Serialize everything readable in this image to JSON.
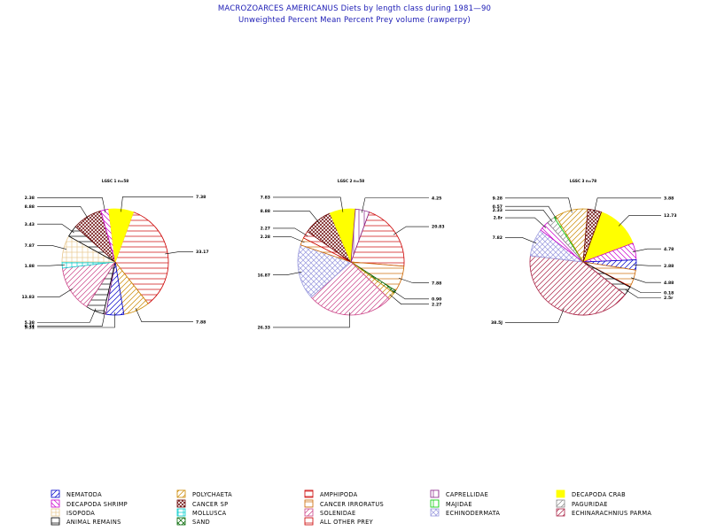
{
  "title_line1": "MACROZOARCES AMERICANUS Diets by length class during 1981—90",
  "title_line2": "Unweighted Percent Mean Percent Prey  volume (rawperpy)",
  "categories": {
    "NEMATODA": {
      "label": "NEMATODA",
      "color": "#0000cc",
      "pattern": "hatch45"
    },
    "DECAPODA SHRIMP": {
      "label": "DECAPODA  SHRIMP",
      "color": "#cc00cc",
      "pattern": "hatch135"
    },
    "ISOPODA": {
      "label": "ISOPODA",
      "color": "#e8c890",
      "pattern": "grid"
    },
    "ANIMAL REMAINS": {
      "label": "ANIMAL  REMAINS",
      "color": "#000000",
      "pattern": "horiz"
    },
    "POLYCHAETA": {
      "label": "POLYCHAETA",
      "color": "#cc8800",
      "pattern": "hatch45"
    },
    "CANCER SP": {
      "label": "CANCER  SP",
      "color": "#660000",
      "pattern": "crossdense"
    },
    "MOLLUSCA": {
      "label": "MOLLUSCA",
      "color": "#00cccc",
      "pattern": "grid"
    },
    "SAND": {
      "label": "SAND",
      "color": "#006600",
      "pattern": "cross"
    },
    "AMPHIPODA": {
      "label": "AMPHIPODA",
      "color": "#cc0000",
      "pattern": "horiz"
    },
    "CANCER IRRORATUS": {
      "label": "CANCER  IRRORATUS",
      "color": "#cc6600",
      "pattern": "horiz"
    },
    "SOLENIDAE": {
      "label": "SOLENIDAE",
      "color": "#cc4488",
      "pattern": "hatch45"
    },
    "ALL OTHER PREY": {
      "label": "ALL  OTHER  PREY",
      "color": "#cc0000",
      "pattern": "horiz"
    },
    "CAPRELLIDAE": {
      "label": "CAPRELLIDAE",
      "color": "#882288",
      "pattern": "vert"
    },
    "MAJIDAE": {
      "label": "MAJIDAE",
      "color": "#00cc00",
      "pattern": "vert"
    },
    "ECHINODERMATA": {
      "label": "ECHINODERMATA",
      "color": "#9999dd",
      "pattern": "cross"
    },
    "DECAPODA CRAB": {
      "label": "DECAPODA  CRAB",
      "color": "#ffff00",
      "pattern": "solid"
    },
    "PAGURIDAE": {
      "label": "PAGURIDAE",
      "color": "#888888",
      "pattern": "hatch45"
    },
    "ECHINARACHNIUS PARMA": {
      "label": "ECHINARACHNIUS  PARMA",
      "color": "#aa2244",
      "pattern": "hatch45"
    }
  },
  "legend_columns": [
    [
      "NEMATODA",
      "DECAPODA SHRIMP",
      "ISOPODA",
      "ANIMAL REMAINS"
    ],
    [
      "POLYCHAETA",
      "CANCER SP",
      "MOLLUSCA",
      "SAND"
    ],
    [
      "AMPHIPODA",
      "CANCER IRRORATUS",
      "SOLENIDAE",
      "ALL OTHER PREY"
    ],
    [
      "CAPRELLIDAE",
      "MAJIDAE",
      "ECHINODERMATA"
    ],
    [
      "DECAPODA CRAB",
      "PAGURIDAE",
      "ECHINARACHNIUS PARMA"
    ]
  ],
  "chart_data": [
    {
      "type": "pie",
      "title": "LGSC 1 n=58",
      "slices": [
        {
          "category": "AMPHIPODA",
          "value": 33.17,
          "label": "33.17"
        },
        {
          "category": "POLYCHAETA",
          "value": 7.88,
          "label": "7.88"
        },
        {
          "category": "NEMATODA",
          "value": 5.31,
          "label": "5.31"
        },
        {
          "category": "CAPRELLIDAE",
          "value": 0.74,
          "label": "0.74"
        },
        {
          "category": "ANIMAL REMAINS",
          "value": 5.38,
          "label": "5.38"
        },
        {
          "category": "SOLENIDAE",
          "value": 13.83,
          "label": "13.83"
        },
        {
          "category": "MOLLUSCA",
          "value": 1.88,
          "label": "1.88"
        },
        {
          "category": "ISOPODA",
          "value": 7.87,
          "label": "7.87"
        },
        {
          "category": "ANIMAL REMAINS",
          "value": 3.43,
          "label": "3.43"
        },
        {
          "category": "CANCER SP",
          "value": 8.88,
          "label": "8.88"
        },
        {
          "category": "DECAPODA SHRIMP",
          "value": 2.38,
          "label": "2.38"
        },
        {
          "category": "DECAPODA CRAB",
          "value": 7.38,
          "label": "7.38"
        }
      ]
    },
    {
      "type": "pie",
      "title": "LGSC 2 n=58",
      "slices": [
        {
          "category": "AMPHIPODA",
          "value": 20.83,
          "label": "20.83"
        },
        {
          "category": "CANCER IRRORATUS",
          "value": 7.88,
          "label": "7.88"
        },
        {
          "category": "SAND",
          "value": 0.9,
          "label": "0.90"
        },
        {
          "category": "POLYCHAETA",
          "value": 2.27,
          "label": "2.27"
        },
        {
          "category": "SOLENIDAE",
          "value": 26.33,
          "label": "26.33"
        },
        {
          "category": "ECHINODERMATA",
          "value": 16.87,
          "label": "16.87"
        },
        {
          "category": "CANCER IRRORATUS",
          "value": 2.28,
          "label": "2.28"
        },
        {
          "category": "ALL OTHER PREY",
          "value": 2.27,
          "label": "2.27"
        },
        {
          "category": "CANCER SP",
          "value": 8.88,
          "label": "8.88"
        },
        {
          "category": "DECAPODA CRAB",
          "value": 7.83,
          "label": "7.83"
        },
        {
          "category": "CAPRELLIDAE",
          "value": 4.25,
          "label": "4.25"
        }
      ]
    },
    {
      "type": "pie",
      "title": "LGSC 3 n=78",
      "slices": [
        {
          "category": "DECAPODA CRAB",
          "value": 12.73,
          "label": "12.73"
        },
        {
          "category": "DECAPODA SHRIMP",
          "value": 4.78,
          "label": "4.78"
        },
        {
          "category": "NEMATODA",
          "value": 2.88,
          "label": "2.88"
        },
        {
          "category": "CANCER IRRORATUS",
          "value": 4.88,
          "label": "4.88"
        },
        {
          "category": "ALL OTHER PREY",
          "value": 0.18,
          "label": "0.18"
        },
        {
          "category": "ANIMAL REMAINS",
          "value": 2.5,
          "label": "2.5r"
        },
        {
          "category": "ECHINARACHNIUS PARMA",
          "value": 38.5,
          "label": "38.5J"
        },
        {
          "category": "ECHINODERMATA",
          "value": 7.82,
          "label": "7.82"
        },
        {
          "category": "DECAPODA SHRIMP",
          "value": 2.87,
          "label": "2.8r"
        },
        {
          "category": "PAGURIDAE",
          "value": 2.33,
          "label": "2.33"
        },
        {
          "category": "MAJIDAE",
          "value": 0.57,
          "label": "0.57"
        },
        {
          "category": "POLYCHAETA",
          "value": 9.28,
          "label": "9.28"
        },
        {
          "category": "CANCER SP",
          "value": 3.88,
          "label": "3.88"
        }
      ]
    }
  ]
}
